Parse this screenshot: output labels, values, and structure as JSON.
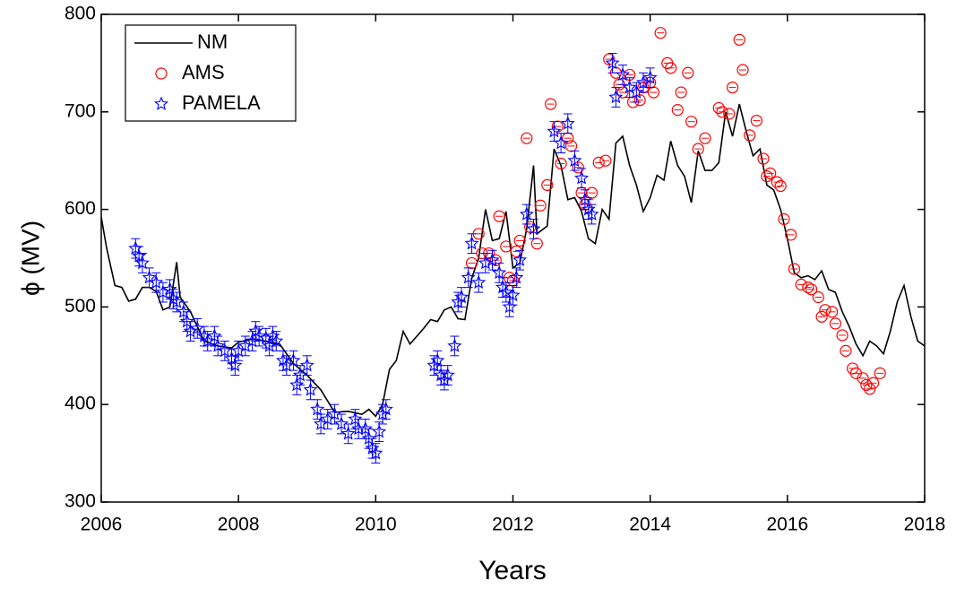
{
  "chart_data": {
    "type": "scatter",
    "x_label": "Years",
    "y_label": "ϕ (MV)",
    "xlim": [
      2006,
      2018
    ],
    "xticks": [
      2006,
      2008,
      2010,
      2012,
      2014,
      2016,
      2018
    ],
    "ylim": [
      300,
      800
    ],
    "yticks": [
      300,
      400,
      500,
      600,
      700,
      800
    ],
    "legend": "upper left",
    "series": [
      {
        "name": "NM",
        "type": "line",
        "color": "#000000",
        "x": [
          2006.0,
          2006.08,
          2006.2,
          2006.3,
          2006.4,
          2006.5,
          2006.6,
          2006.7,
          2006.8,
          2006.9,
          2007.0,
          2007.1,
          2007.15,
          2007.3,
          2007.4,
          2007.5,
          2007.7,
          2007.9,
          2008.0,
          2008.2,
          2008.4,
          2008.6,
          2008.8,
          2009.0,
          2009.2,
          2009.4,
          2009.6,
          2009.8,
          2009.9,
          2010.0,
          2010.1,
          2010.2,
          2010.3,
          2010.4,
          2010.5,
          2010.6,
          2010.7,
          2010.8,
          2010.9,
          2011.0,
          2011.1,
          2011.2,
          2011.3,
          2011.4,
          2011.5,
          2011.6,
          2011.7,
          2011.8,
          2011.9,
          2012.0,
          2012.1,
          2012.2,
          2012.3,
          2012.35,
          2012.5,
          2012.6,
          2012.7,
          2012.8,
          2012.9,
          2013.0,
          2013.1,
          2013.2,
          2013.3,
          2013.4,
          2013.5,
          2013.6,
          2013.7,
          2013.8,
          2013.9,
          2014.0,
          2014.1,
          2014.2,
          2014.3,
          2014.4,
          2014.5,
          2014.6,
          2014.7,
          2014.8,
          2014.9,
          2015.0,
          2015.1,
          2015.2,
          2015.3,
          2015.4,
          2015.5,
          2015.6,
          2015.7,
          2015.8,
          2015.9,
          2016.0,
          2016.1,
          2016.2,
          2016.3,
          2016.4,
          2016.5,
          2016.6,
          2016.7,
          2016.8,
          2016.9,
          2017.0,
          2017.1,
          2017.2,
          2017.3,
          2017.4,
          2017.5,
          2017.6,
          2017.7,
          2017.8,
          2017.9,
          2018.0
        ],
        "values": [
          592,
          560,
          522,
          520,
          506,
          508,
          520,
          520,
          516,
          497,
          500,
          546,
          510,
          495,
          480,
          465,
          460,
          458,
          464,
          467,
          465,
          462,
          442,
          430,
          415,
          392,
          393,
          390,
          395,
          388,
          400,
          436,
          445,
          475,
          462,
          470,
          478,
          487,
          485,
          497,
          500,
          488,
          487,
          530,
          550,
          600,
          568,
          570,
          598,
          540,
          545,
          580,
          645,
          575,
          583,
          662,
          645,
          610,
          612,
          598,
          570,
          565,
          600,
          590,
          668,
          675,
          645,
          625,
          598,
          612,
          635,
          630,
          670,
          645,
          634,
          607,
          660,
          640,
          640,
          648,
          700,
          675,
          708,
          680,
          655,
          662,
          625,
          620,
          600,
          570,
          535,
          530,
          532,
          528,
          537,
          518,
          515,
          495,
          480,
          462,
          450,
          465,
          460,
          452,
          475,
          505,
          522,
          490,
          465,
          460
        ]
      },
      {
        "name": "AMS",
        "type": "circle",
        "color": "#ff0000",
        "x": [
          2011.4,
          2011.5,
          2011.55,
          2011.65,
          2011.75,
          2011.8,
          2011.9,
          2011.95,
          2012.0,
          2012.05,
          2012.1,
          2012.2,
          2012.25,
          2012.35,
          2012.4,
          2012.5,
          2012.55,
          2012.65,
          2012.7,
          2012.8,
          2012.85,
          2012.95,
          2013.0,
          2013.05,
          2013.15,
          2013.25,
          2013.35,
          2013.4,
          2013.5,
          2013.55,
          2013.6,
          2013.7,
          2013.75,
          2013.85,
          2013.9,
          2014.0,
          2014.05,
          2014.15,
          2014.25,
          2014.3,
          2014.4,
          2014.45,
          2014.55,
          2014.6,
          2014.7,
          2014.8,
          2015.0,
          2015.05,
          2015.15,
          2015.2,
          2015.3,
          2015.35,
          2015.45,
          2015.55,
          2015.65,
          2015.7,
          2015.75,
          2015.85,
          2015.9,
          2015.95,
          2016.05,
          2016.1,
          2016.2,
          2016.3,
          2016.35,
          2016.45,
          2016.5,
          2016.55,
          2016.65,
          2016.7,
          2016.8,
          2016.85,
          2016.95,
          2017.0,
          2017.1,
          2017.15,
          2017.2,
          2017.25,
          2017.35
        ],
        "values": [
          545,
          575,
          555,
          555,
          548,
          593,
          562,
          530,
          527,
          557,
          568,
          673,
          582,
          565,
          604,
          625,
          708,
          685,
          647,
          673,
          665,
          643,
          617,
          605,
          617,
          648,
          650,
          754,
          740,
          728,
          720,
          738,
          710,
          712,
          725,
          730,
          720,
          781,
          750,
          745,
          702,
          720,
          740,
          690,
          662,
          673,
          704,
          700,
          698,
          725,
          774,
          743,
          676,
          691,
          652,
          634,
          637,
          628,
          624,
          590,
          574,
          539,
          523,
          520,
          518,
          510,
          490,
          497,
          495,
          483,
          471,
          455,
          437,
          432,
          427,
          420,
          416,
          422,
          432
        ]
      },
      {
        "name": "PAMELA",
        "type": "star",
        "color": "#0000ff",
        "x": [
          2006.5,
          2006.55,
          2006.6,
          2006.7,
          2006.8,
          2006.9,
          2007.0,
          2007.05,
          2007.1,
          2007.2,
          2007.25,
          2007.3,
          2007.4,
          2007.5,
          2007.55,
          2007.65,
          2007.7,
          2007.8,
          2007.9,
          2007.95,
          2008.0,
          2008.1,
          2008.2,
          2008.25,
          2008.3,
          2008.4,
          2008.45,
          2008.5,
          2008.55,
          2008.65,
          2008.7,
          2008.8,
          2008.85,
          2008.9,
          2009.0,
          2009.05,
          2009.15,
          2009.2,
          2009.3,
          2009.4,
          2009.5,
          2009.6,
          2009.7,
          2009.75,
          2009.85,
          2009.9,
          2009.95,
          2010.0,
          2010.05,
          2010.1,
          2010.15,
          2010.85,
          2010.9,
          2010.95,
          2011.0,
          2011.05,
          2011.15,
          2011.2,
          2011.25,
          2011.35,
          2011.4,
          2011.5,
          2011.6,
          2011.7,
          2011.8,
          2011.85,
          2011.9,
          2011.95,
          2012.0,
          2012.05,
          2012.1,
          2012.2,
          2012.3,
          2012.6,
          2012.7,
          2012.8,
          2012.9,
          2013.0,
          2013.05,
          2013.1,
          2013.15,
          2013.45,
          2013.5,
          2013.6,
          2013.7,
          2013.8,
          2013.9,
          2014.0
        ],
        "values": [
          560,
          552,
          545,
          530,
          525,
          515,
          518,
          508,
          505,
          495,
          485,
          475,
          478,
          470,
          465,
          470,
          460,
          455,
          447,
          440,
          455,
          460,
          465,
          475,
          470,
          468,
          460,
          470,
          465,
          445,
          440,
          445,
          420,
          430,
          440,
          415,
          395,
          380,
          385,
          390,
          380,
          370,
          385,
          375,
          375,
          365,
          355,
          350,
          372,
          390,
          395,
          440,
          445,
          430,
          425,
          430,
          460,
          505,
          510,
          530,
          565,
          525,
          545,
          548,
          535,
          520,
          515,
          500,
          512,
          530,
          548,
          595,
          580,
          680,
          668,
          688,
          650,
          632,
          610,
          600,
          595,
          750,
          715,
          738,
          725,
          720,
          730,
          735
        ],
        "errors": [
          10,
          10,
          10,
          10,
          10,
          10,
          10,
          10,
          10,
          10,
          10,
          10,
          10,
          10,
          10,
          10,
          10,
          10,
          10,
          10,
          10,
          10,
          10,
          10,
          10,
          10,
          10,
          10,
          10,
          10,
          10,
          10,
          10,
          10,
          10,
          10,
          10,
          10,
          10,
          10,
          10,
          10,
          10,
          10,
          10,
          10,
          10,
          10,
          10,
          10,
          10,
          10,
          10,
          10,
          10,
          10,
          10,
          10,
          10,
          10,
          10,
          10,
          10,
          10,
          10,
          10,
          10,
          10,
          10,
          10,
          10,
          10,
          10,
          10,
          10,
          10,
          10,
          10,
          10,
          10,
          10,
          10,
          10,
          10,
          10,
          10,
          10,
          10
        ]
      }
    ]
  }
}
